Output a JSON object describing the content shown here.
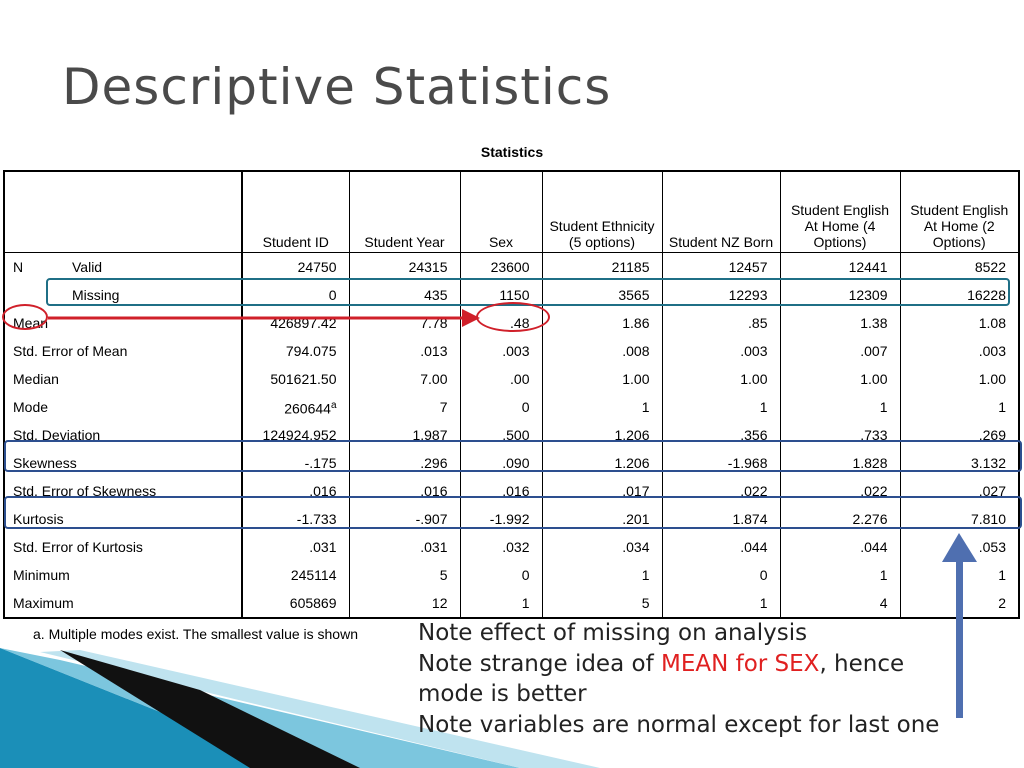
{
  "title": "Descriptive Statistics",
  "table": {
    "caption": "Statistics",
    "columns": [
      "Student ID",
      "Student Year",
      "Sex",
      "Student Ethnicity (5 options)",
      "Student NZ Born",
      "Student English At Home (4 Options)",
      "Student English At Home (2 Options)"
    ],
    "rows": [
      {
        "label1": "N",
        "label2": "Valid",
        "values": [
          "24750",
          "24315",
          "23600",
          "21185",
          "12457",
          "12441",
          "8522"
        ]
      },
      {
        "label1": "",
        "label2": "Missing",
        "values": [
          "0",
          "435",
          "1150",
          "3565",
          "12293",
          "12309",
          "16228"
        ]
      },
      {
        "label1": "Mean",
        "label2": "",
        "values": [
          "426897.42",
          "7.78",
          ".48",
          "1.86",
          ".85",
          "1.38",
          "1.08"
        ]
      },
      {
        "label1": "Std. Error of Mean",
        "label2": "",
        "values": [
          "794.075",
          ".013",
          ".003",
          ".008",
          ".003",
          ".007",
          ".003"
        ]
      },
      {
        "label1": "Median",
        "label2": "",
        "values": [
          "501621.50",
          "7.00",
          ".00",
          "1.00",
          "1.00",
          "1.00",
          "1.00"
        ]
      },
      {
        "label1": "Mode",
        "label2": "",
        "values": [
          "260644",
          "7",
          "0",
          "1",
          "1",
          "1",
          "1"
        ]
      },
      {
        "label1": "Std. Deviation",
        "label2": "",
        "values": [
          "124924.952",
          "1.987",
          ".500",
          "1.206",
          ".356",
          ".733",
          ".269"
        ]
      },
      {
        "label1": "Skewness",
        "label2": "",
        "values": [
          "-.175",
          ".296",
          ".090",
          "1.206",
          "-1.968",
          "1.828",
          "3.132"
        ]
      },
      {
        "label1": "Std. Error of Skewness",
        "label2": "",
        "values": [
          ".016",
          ".016",
          ".016",
          ".017",
          ".022",
          ".022",
          ".027"
        ]
      },
      {
        "label1": "Kurtosis",
        "label2": "",
        "values": [
          "-1.733",
          "-.907",
          "-1.992",
          ".201",
          "1.874",
          "2.276",
          "7.810"
        ]
      },
      {
        "label1": "Std. Error of Kurtosis",
        "label2": "",
        "values": [
          ".031",
          ".031",
          ".032",
          ".034",
          ".044",
          ".044",
          ".053"
        ]
      },
      {
        "label1": "Minimum",
        "label2": "",
        "values": [
          "245114",
          "5",
          "0",
          "1",
          "0",
          "1",
          "1"
        ]
      },
      {
        "label1": "Maximum",
        "label2": "",
        "values": [
          "605869",
          "12",
          "1",
          "5",
          "1",
          "4",
          "2"
        ]
      }
    ],
    "mode_superscript": "a",
    "footnote": "a. Multiple modes exist. The smallest value is shown"
  },
  "notes": {
    "line1": "Note effect of missing on analysis",
    "line2_prefix": "Note strange idea of ",
    "line2_highlight": "MEAN for SEX",
    "line2_suffix": ", hence",
    "line3": "mode is better",
    "line4": "Note variables are normal except for last one"
  },
  "colors": {
    "red_highlight": "#d0202a",
    "teal_highlight": "#1f6f86",
    "blue_highlight": "#2d4f8f",
    "arrow_blue": "#4f6fb0",
    "note_red": "#e02020"
  }
}
